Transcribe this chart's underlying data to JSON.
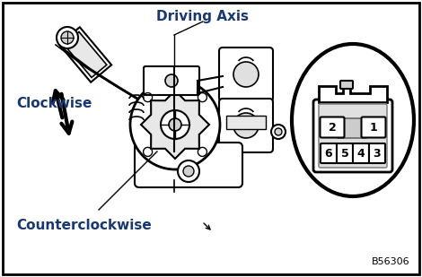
{
  "bg_color": "#ffffff",
  "border_color": "#000000",
  "blue_label_color": "#1a3870",
  "labels": {
    "driving_axis": "Driving Axis",
    "clockwise": "Clockwise",
    "counterclockwise": "Counterclockwise"
  },
  "diagram_code": "B56306",
  "figsize": [
    4.7,
    3.09
  ],
  "dpi": 100,
  "connector_top_pins": [
    "2",
    "1"
  ],
  "connector_bot_pins": [
    "6",
    "5",
    "4",
    "3"
  ]
}
